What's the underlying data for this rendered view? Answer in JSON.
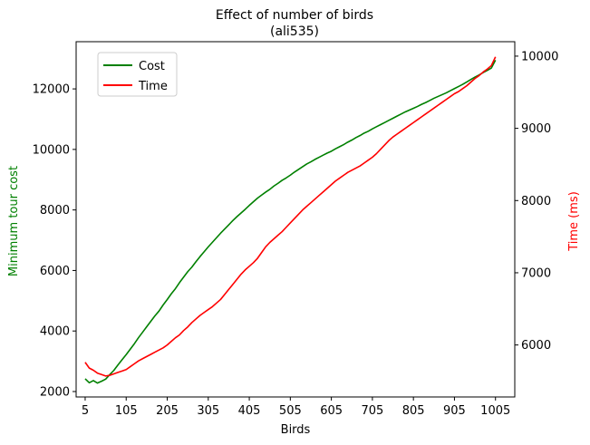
{
  "chart_data": {
    "type": "line",
    "title": "Effect of number of birds",
    "subtitle": "(ali535)",
    "xlabel": "Birds",
    "ylabel_left": "Minimum tour cost",
    "ylabel_right": "Time (ms)",
    "xlim": [
      -17,
      1052
    ],
    "ylim_left": [
      1820,
      13560
    ],
    "ylim_right": [
      5280,
      10200
    ],
    "x_ticks": [
      5,
      105,
      205,
      305,
      405,
      505,
      605,
      705,
      805,
      905,
      1005
    ],
    "y_ticks_left": [
      2000,
      4000,
      6000,
      8000,
      10000,
      12000
    ],
    "y_ticks_right": [
      6000,
      7000,
      8000,
      9000,
      10000
    ],
    "legend_position": "top-left",
    "grid": false,
    "colors": {
      "cost": "#008000",
      "time": "#ff0000"
    },
    "series": [
      {
        "name": "Cost",
        "axis": "left",
        "x": [
          5,
          15,
          25,
          35,
          45,
          55,
          65,
          75,
          85,
          95,
          105,
          115,
          125,
          135,
          145,
          155,
          165,
          175,
          185,
          195,
          205,
          215,
          225,
          235,
          245,
          255,
          265,
          275,
          285,
          295,
          305,
          315,
          325,
          335,
          345,
          355,
          365,
          375,
          385,
          395,
          405,
          415,
          425,
          435,
          445,
          455,
          465,
          475,
          485,
          495,
          505,
          515,
          525,
          535,
          545,
          555,
          565,
          575,
          585,
          595,
          605,
          615,
          625,
          635,
          645,
          655,
          665,
          675,
          685,
          695,
          705,
          715,
          725,
          735,
          745,
          755,
          765,
          775,
          785,
          795,
          805,
          815,
          825,
          835,
          845,
          855,
          865,
          875,
          885,
          895,
          905,
          915,
          925,
          935,
          945,
          955,
          965,
          975,
          985,
          995,
          1005
        ],
        "values": [
          2420,
          2290,
          2360,
          2280,
          2340,
          2410,
          2560,
          2700,
          2880,
          3050,
          3220,
          3400,
          3580,
          3780,
          3960,
          4140,
          4320,
          4500,
          4660,
          4860,
          5040,
          5230,
          5400,
          5600,
          5780,
          5960,
          6110,
          6290,
          6460,
          6620,
          6780,
          6930,
          7080,
          7230,
          7370,
          7510,
          7650,
          7780,
          7900,
          8020,
          8150,
          8270,
          8390,
          8490,
          8590,
          8680,
          8790,
          8880,
          8980,
          9060,
          9150,
          9250,
          9340,
          9430,
          9520,
          9590,
          9670,
          9740,
          9810,
          9880,
          9940,
          10020,
          10090,
          10160,
          10240,
          10310,
          10390,
          10460,
          10540,
          10600,
          10680,
          10750,
          10820,
          10890,
          10960,
          11030,
          11100,
          11170,
          11240,
          11300,
          11360,
          11420,
          11490,
          11550,
          11620,
          11690,
          11750,
          11810,
          11870,
          11940,
          12010,
          12080,
          12150,
          12230,
          12310,
          12390,
          12460,
          12540,
          12610,
          12690,
          12950
        ]
      },
      {
        "name": "Time",
        "axis": "right",
        "x": [
          5,
          15,
          25,
          35,
          45,
          55,
          65,
          75,
          85,
          95,
          105,
          115,
          125,
          135,
          145,
          155,
          165,
          175,
          185,
          195,
          205,
          215,
          225,
          235,
          245,
          255,
          265,
          275,
          285,
          295,
          305,
          315,
          325,
          335,
          345,
          355,
          365,
          375,
          385,
          395,
          405,
          415,
          425,
          435,
          445,
          455,
          465,
          475,
          485,
          495,
          505,
          515,
          525,
          535,
          545,
          555,
          565,
          575,
          585,
          595,
          605,
          615,
          625,
          635,
          645,
          655,
          665,
          675,
          685,
          695,
          705,
          715,
          725,
          735,
          745,
          755,
          765,
          775,
          785,
          795,
          805,
          815,
          825,
          835,
          845,
          855,
          865,
          875,
          885,
          895,
          905,
          915,
          925,
          935,
          945,
          955,
          965,
          975,
          985,
          995,
          1005
        ],
        "values": [
          5760,
          5680,
          5650,
          5610,
          5590,
          5570,
          5580,
          5600,
          5620,
          5640,
          5660,
          5700,
          5740,
          5780,
          5810,
          5840,
          5870,
          5900,
          5930,
          5960,
          6000,
          6050,
          6100,
          6140,
          6200,
          6250,
          6310,
          6360,
          6410,
          6450,
          6490,
          6530,
          6580,
          6630,
          6700,
          6770,
          6840,
          6910,
          6980,
          7040,
          7090,
          7140,
          7200,
          7280,
          7360,
          7420,
          7470,
          7520,
          7570,
          7630,
          7690,
          7750,
          7810,
          7870,
          7920,
          7970,
          8020,
          8070,
          8120,
          8170,
          8220,
          8270,
          8310,
          8350,
          8390,
          8420,
          8450,
          8480,
          8520,
          8560,
          8600,
          8650,
          8710,
          8770,
          8830,
          8880,
          8920,
          8960,
          9000,
          9040,
          9080,
          9120,
          9160,
          9200,
          9240,
          9280,
          9320,
          9360,
          9400,
          9440,
          9480,
          9510,
          9550,
          9590,
          9640,
          9690,
          9730,
          9780,
          9820,
          9870,
          9990
        ]
      }
    ]
  }
}
